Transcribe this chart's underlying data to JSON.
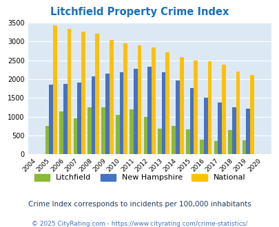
{
  "title": "Litchfield Property Crime Index",
  "years": [
    2004,
    2005,
    2006,
    2007,
    2008,
    2009,
    2010,
    2011,
    2012,
    2013,
    2014,
    2015,
    2016,
    2017,
    2018,
    2019,
    2020
  ],
  "litchfield": [
    0,
    750,
    1150,
    960,
    1250,
    1250,
    1050,
    1200,
    990,
    680,
    760,
    660,
    390,
    350,
    650,
    380,
    0
  ],
  "new_hampshire": [
    0,
    1850,
    1870,
    1900,
    2080,
    2150,
    2180,
    2280,
    2330,
    2180,
    1970,
    1760,
    1510,
    1370,
    1250,
    1210,
    0
  ],
  "national": [
    0,
    3420,
    3330,
    3260,
    3210,
    3040,
    2950,
    2890,
    2850,
    2720,
    2590,
    2490,
    2470,
    2380,
    2200,
    2110,
    0
  ],
  "litchfield_color": "#8db834",
  "nh_color": "#4472c4",
  "national_color": "#ffc000",
  "plot_bg": "#dce9f5",
  "ylim": [
    0,
    3500
  ],
  "yticks": [
    0,
    500,
    1000,
    1500,
    2000,
    2500,
    3000,
    3500
  ],
  "subtitle": "Crime Index corresponds to incidents per 100,000 inhabitants",
  "footer": "© 2025 CityRating.com - https://www.cityrating.com/crime-statistics/",
  "legend_labels": [
    "Litchfield",
    "New Hampshire",
    "National"
  ],
  "title_color": "#1a6fbd",
  "subtitle_color": "#1a3a5c",
  "footer_color": "#4472c4"
}
